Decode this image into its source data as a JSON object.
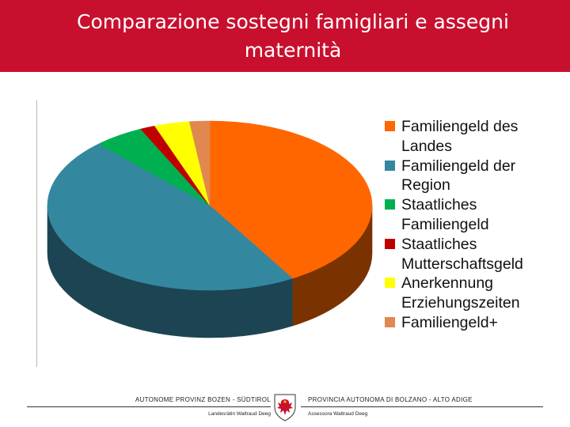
{
  "title": "Comparazione sostegni famigliari e assegni maternità",
  "colors": {
    "title_bar": "#c8102e",
    "title_text": "#ffffff"
  },
  "chart_data": {
    "type": "pie",
    "style": "3d",
    "legend_position": "right",
    "start_angle_deg": 0,
    "direction": "clockwise",
    "slices": [
      {
        "label": "Familiengeld des Landes",
        "value": 41.5,
        "color": "#ff6600",
        "side_color": "#7a3300"
      },
      {
        "label": "Familiengeld der Region",
        "value": 46.5,
        "color": "#33889f",
        "side_color": "#1d4452"
      },
      {
        "label": "Staatliches Familiengeld",
        "value": 5.0,
        "color": "#00b050",
        "side_color": "#005a28"
      },
      {
        "label": "Staatliches Mutterschaftsgeld",
        "value": 1.5,
        "color": "#c00000",
        "side_color": "#600000"
      },
      {
        "label": "Anerkennung Erziehungszeiten",
        "value": 3.5,
        "color": "#ffff00",
        "side_color": "#808000"
      },
      {
        "label": "Familiengeld+",
        "value": 2.0,
        "color": "#e08850",
        "side_color": "#704428"
      }
    ]
  },
  "footer": {
    "left_name": "AUTONOME PROVINZ BOZEN - SÜDTIROL",
    "left_person": "Landesrätin Waltraud Deeg",
    "right_name": "PROVINCIA AUTONOMA DI BOLZANO - ALTO ADIGE",
    "right_person": "Assessora Waltraud Deeg"
  }
}
